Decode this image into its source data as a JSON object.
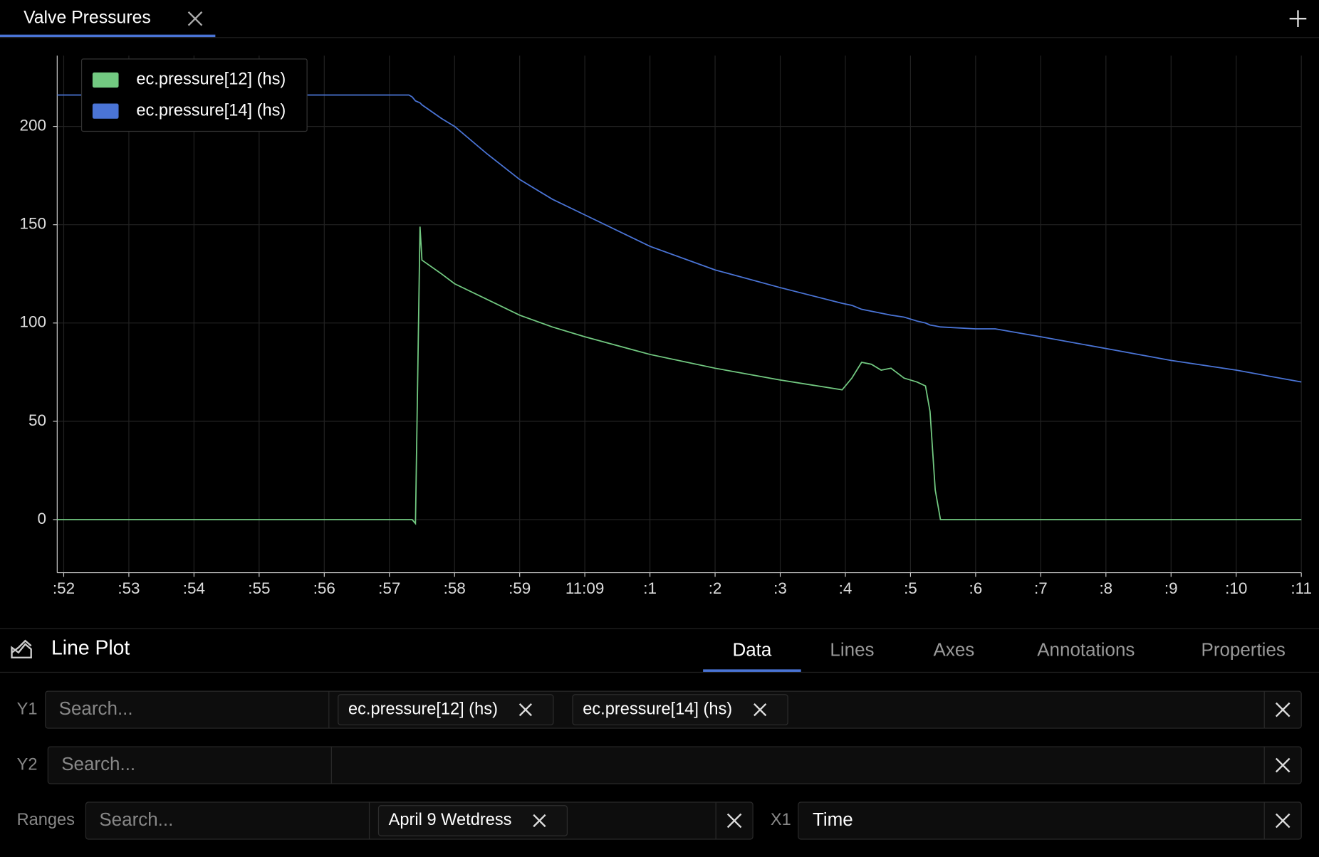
{
  "tab": {
    "title": "Valve Pressures"
  },
  "chart_data": {
    "type": "line",
    "legend": "top-left",
    "grid": true,
    "x": [
      51.9,
      52,
      54,
      56,
      57.3,
      57.35,
      57.4,
      57.47,
      57.5,
      57.8,
      58,
      58.5,
      59,
      59.5,
      60,
      61,
      62,
      63,
      63.95,
      64.1,
      64.25,
      64.4,
      64.55,
      64.7,
      64.9,
      65.1,
      65.23,
      65.3,
      65.38,
      65.46,
      66,
      66.3,
      67,
      68,
      69,
      70,
      71
    ],
    "series": [
      {
        "name": "ec.pressure[12] (hs)",
        "color": "#72c981",
        "values": [
          0,
          0,
          0,
          0,
          0,
          0,
          -2,
          149,
          132,
          125,
          120,
          112,
          104,
          98,
          93,
          84,
          77,
          71,
          66,
          72,
          80,
          79,
          76,
          77,
          72,
          70,
          68,
          55,
          15,
          0,
          0,
          0,
          0,
          0,
          0,
          0,
          0
        ]
      },
      {
        "name": "ec.pressure[14] (hs)",
        "color": "#4a74d6",
        "values": [
          216,
          216,
          216,
          216,
          216,
          215,
          213,
          212,
          211,
          204,
          200,
          186,
          173,
          163,
          155,
          139,
          127,
          118,
          110,
          109,
          107,
          106,
          105,
          104,
          103,
          101,
          100,
          99,
          98.5,
          98,
          97,
          97,
          93,
          87,
          81,
          76,
          70
        ]
      }
    ],
    "xlim": [
      51.9,
      71
    ],
    "ylim": [
      -27,
      236
    ],
    "xticks": [
      {
        "value": 52,
        "label": ":52"
      },
      {
        "value": 53,
        "label": ":53"
      },
      {
        "value": 54,
        "label": ":54"
      },
      {
        "value": 55,
        "label": ":55"
      },
      {
        "value": 56,
        "label": ":56"
      },
      {
        "value": 57,
        "label": ":57"
      },
      {
        "value": 58,
        "label": ":58"
      },
      {
        "value": 59,
        "label": ":59"
      },
      {
        "value": 60,
        "label": "11:09"
      },
      {
        "value": 61,
        "label": ":1"
      },
      {
        "value": 62,
        "label": ":2"
      },
      {
        "value": 63,
        "label": ":3"
      },
      {
        "value": 64,
        "label": ":4"
      },
      {
        "value": 65,
        "label": ":5"
      },
      {
        "value": 66,
        "label": ":6"
      },
      {
        "value": 67,
        "label": ":7"
      },
      {
        "value": 68,
        "label": ":8"
      },
      {
        "value": 69,
        "label": ":9"
      },
      {
        "value": 70,
        "label": ":10"
      },
      {
        "value": 71,
        "label": ":11"
      }
    ],
    "yticks": [
      0,
      50,
      100,
      150,
      200
    ]
  },
  "panel": {
    "title": "Line Plot",
    "tabs": [
      "Data",
      "Lines",
      "Axes",
      "Annotations",
      "Properties"
    ],
    "active_tab": 0,
    "fields": [
      {
        "label": "Y1",
        "placeholder": "Search...",
        "chips": [
          "ec.pressure[12] (hs)",
          "ec.pressure[14] (hs)"
        ]
      },
      {
        "label": "Y2",
        "placeholder": "Search...",
        "chips": []
      },
      {
        "label": "Ranges",
        "placeholder": "Search...",
        "chips": [
          "April 9 Wetdress"
        ]
      },
      {
        "label": "X1",
        "value": "Time"
      }
    ]
  }
}
